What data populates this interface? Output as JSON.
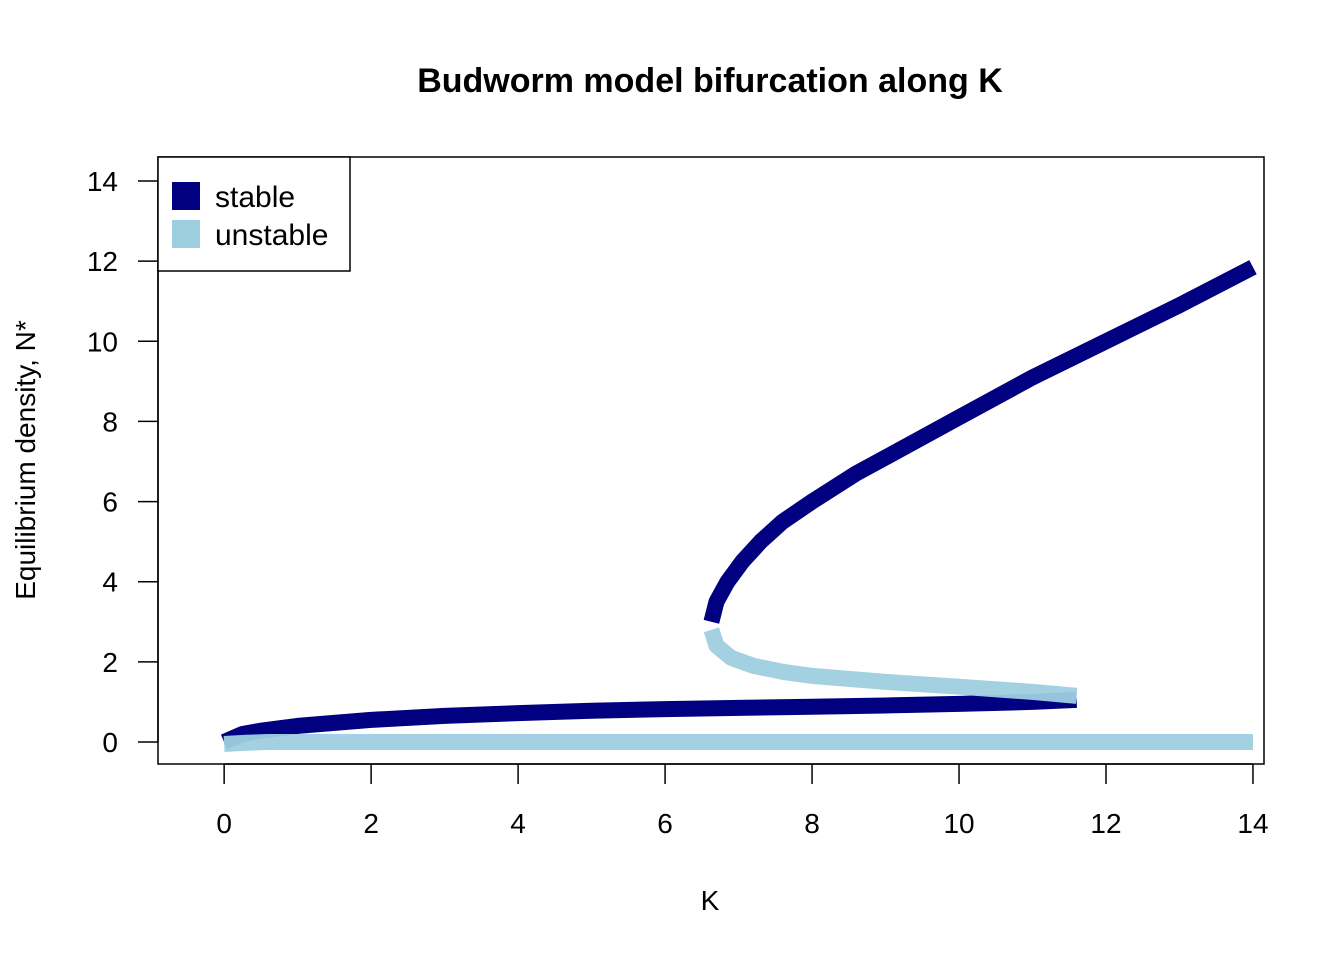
{
  "chart_data": {
    "type": "line",
    "title": "Budworm model bifurcation along K",
    "xlabel": "K",
    "ylabel": "Equilibrium density, N*",
    "xlim": [
      -0.9,
      14.15
    ],
    "ylim": [
      -0.55,
      14.6
    ],
    "xticks": [
      0,
      2,
      4,
      6,
      8,
      10,
      12,
      14
    ],
    "yticks": [
      0,
      2,
      4,
      6,
      8,
      10,
      12,
      14
    ],
    "grid": false,
    "legend_position": "top-left",
    "series": [
      {
        "name": "stable",
        "color": "#000080",
        "points": [
          [
            0.0,
            0.0
          ],
          [
            0.25,
            0.2
          ],
          [
            0.5,
            0.28
          ],
          [
            1.0,
            0.4
          ],
          [
            2.0,
            0.55
          ],
          [
            3.0,
            0.65
          ],
          [
            4.0,
            0.72
          ],
          [
            5.0,
            0.78
          ],
          [
            6.0,
            0.82
          ],
          [
            7.0,
            0.85
          ],
          [
            8.0,
            0.88
          ],
          [
            9.0,
            0.91
          ],
          [
            10.0,
            0.95
          ],
          [
            11.0,
            1.0
          ],
          [
            11.6,
            1.05
          ]
        ]
      },
      {
        "name": "stable",
        "color": "#000080",
        "points": [
          [
            6.63,
            3.0
          ],
          [
            6.7,
            3.5
          ],
          [
            6.85,
            4.0
          ],
          [
            7.05,
            4.5
          ],
          [
            7.3,
            5.0
          ],
          [
            7.6,
            5.5
          ],
          [
            8.0,
            6.0
          ],
          [
            8.6,
            6.7
          ],
          [
            9.2,
            7.3
          ],
          [
            10.0,
            8.1
          ],
          [
            11.0,
            9.1
          ],
          [
            12.0,
            10.0
          ],
          [
            13.0,
            10.9
          ],
          [
            14.0,
            11.85
          ]
        ]
      },
      {
        "name": "unstable",
        "color": "#9ECFE0",
        "points": [
          [
            6.63,
            2.8
          ],
          [
            6.7,
            2.4
          ],
          [
            6.9,
            2.1
          ],
          [
            7.2,
            1.9
          ],
          [
            7.6,
            1.75
          ],
          [
            8.0,
            1.65
          ],
          [
            9.0,
            1.5
          ],
          [
            10.0,
            1.38
          ],
          [
            11.0,
            1.25
          ],
          [
            11.6,
            1.15
          ]
        ]
      },
      {
        "name": "unstable",
        "color": "#9ECFE0",
        "points": [
          [
            0.0,
            -0.05
          ],
          [
            0.3,
            -0.02
          ],
          [
            0.6,
            0.0
          ],
          [
            2.0,
            0.0
          ],
          [
            6.0,
            0.0
          ],
          [
            10.0,
            0.0
          ],
          [
            14.0,
            0.0
          ]
        ]
      }
    ],
    "legend": [
      {
        "label": "stable",
        "color": "#000080"
      },
      {
        "label": "unstable",
        "color": "#9ECFE0"
      }
    ]
  }
}
